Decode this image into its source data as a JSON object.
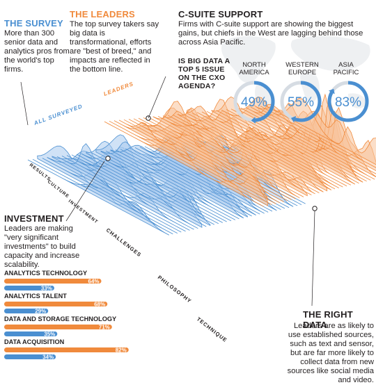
{
  "survey": {
    "title": "THE SURVEY",
    "text": "More than 300 senior data and analytics pros from the world's top firms."
  },
  "leaders": {
    "title": "THE LEADERS",
    "text": "The top survey takers say big data is transformational, efforts are \"best of breed,\" and impacts are reflected in the bottom line."
  },
  "csuite": {
    "title": "C-SUITE SUPPORT",
    "text": "Firms with C-suite support are showing the biggest gains, but chiefs in the West are lagging behind those across Asia Pacific.",
    "question": "IS BIG DATA A TOP 5 ISSUE ON THE CXO AGENDA?"
  },
  "investment": {
    "title": "INVESTMENT",
    "text": "Leaders are making \"very significant investments\" to build capacity and increase scalability."
  },
  "right_data": {
    "title": "THE RIGHT DATA",
    "text": "Leaders are as likely to use established sources, such as text and sensor, but are far more likely to collect data from new sources like social media and video."
  },
  "ridge": {
    "series_labels": [
      "ALL SURVEYED",
      "LEADERS"
    ],
    "categories": [
      "RESULTS",
      "CULTURE",
      "INVESTMENT",
      "CHALLENGES",
      "PHILOSOPHY",
      "TECHNIQUE"
    ]
  },
  "colors": {
    "blue": "#4a8fd1",
    "light_blue": "#a9cbee",
    "orange": "#f08a3c",
    "light_orange": "#f7c39a",
    "dark": "#231f20"
  },
  "chart_data": [
    {
      "type": "pie",
      "title": "IS BIG DATA A TOP 5 ISSUE ON THE CXO AGENDA?",
      "categories": [
        "NORTH AMERICA",
        "WESTERN EUROPE",
        "ASIA PACIFIC"
      ],
      "values": [
        49,
        55,
        83
      ],
      "labels": [
        "49%",
        "55%",
        "83%"
      ],
      "category_display": [
        [
          "NORTH",
          "AMERICA"
        ],
        [
          "WESTERN",
          "EUROPE"
        ],
        [
          "ASIA",
          "PACIFIC"
        ]
      ]
    },
    {
      "type": "bar",
      "categories": [
        "ANALYTICS TECHNOLOGY",
        "ANALYTICS TALENT",
        "DATA AND STORAGE TECHNOLOGY",
        "DATA ACQUISITION"
      ],
      "series": [
        {
          "name": "LEADERS",
          "values": [
            64,
            68,
            71,
            82
          ],
          "labels": [
            "64%",
            "68%",
            "71%",
            "82%"
          ]
        },
        {
          "name": "ALL SURVEYED",
          "values": [
            33,
            29,
            35,
            34
          ],
          "labels": [
            "33%",
            "29%",
            "35%",
            "34%"
          ]
        }
      ],
      "ylim": [
        0,
        100
      ]
    }
  ]
}
